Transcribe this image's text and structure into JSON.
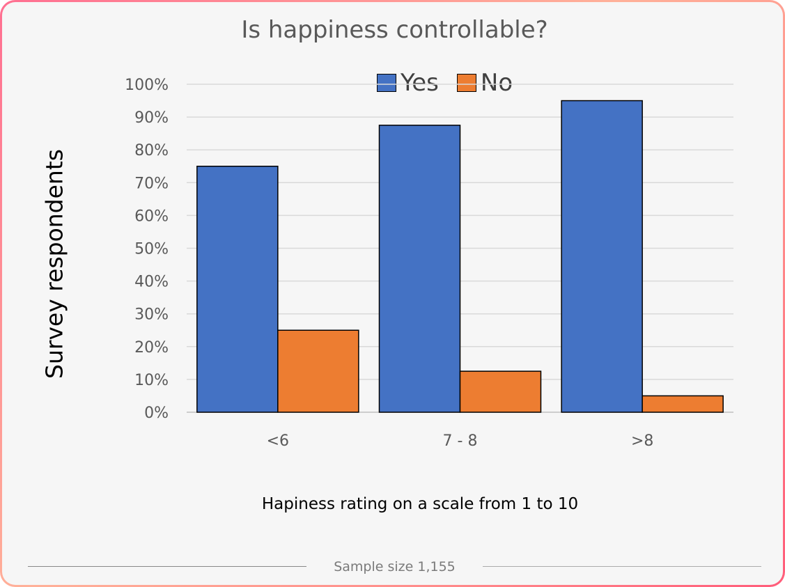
{
  "chart_data": {
    "type": "bar",
    "title": "Is happiness controllable?",
    "xlabel": "Hapiness rating on a scale from 1 to 10",
    "ylabel": "Survey respondents",
    "categories": [
      "<6",
      "7 - 8",
      ">8"
    ],
    "series": [
      {
        "name": "Yes",
        "color": "#4472c4",
        "values": [
          75,
          87.5,
          95
        ]
      },
      {
        "name": "No",
        "color": "#ed7d31",
        "values": [
          25,
          12.5,
          5
        ]
      }
    ],
    "ylim": [
      0,
      100
    ],
    "yticks": [
      "0%",
      "10%",
      "20%",
      "30%",
      "40%",
      "50%",
      "60%",
      "70%",
      "80%",
      "90%",
      "100%"
    ],
    "grid": true,
    "legend": "top"
  },
  "footer": {
    "sample_size": "Sample size 1,155"
  }
}
